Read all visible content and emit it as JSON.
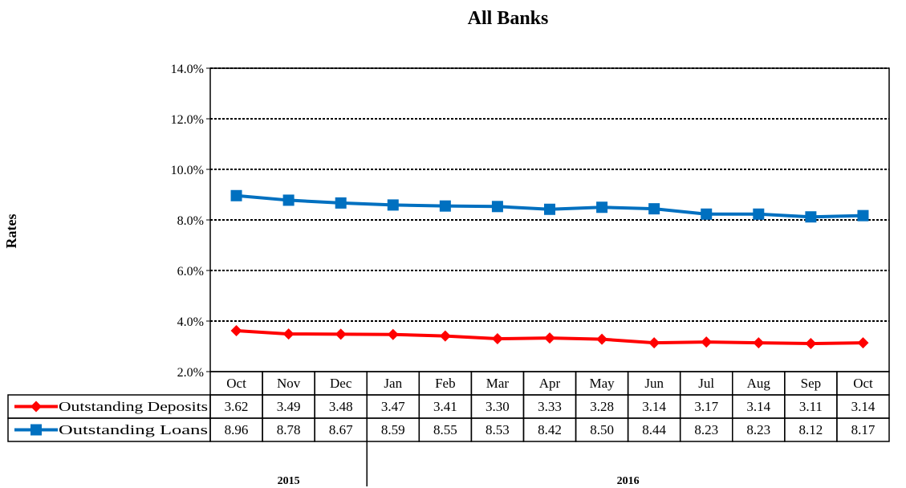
{
  "chart_data": {
    "type": "line",
    "title": "All Banks",
    "ylabel": "Rates",
    "ylim": [
      2.0,
      14.0
    ],
    "y_ticks": [
      "2.0%",
      "4.0%",
      "6.0%",
      "8.0%",
      "10.0%",
      "12.0%",
      "14.0%"
    ],
    "y_tick_values": [
      2,
      4,
      6,
      8,
      10,
      12,
      14
    ],
    "categories": [
      "Oct",
      "Nov",
      "Dec",
      "Jan",
      "Feb",
      "Mar",
      "Apr",
      "May",
      "Jun",
      "Jul",
      "Aug",
      "Sep",
      "Oct"
    ],
    "years": [
      {
        "label": "2015",
        "start": 0,
        "end": 2
      },
      {
        "label": "2016",
        "start": 3,
        "end": 12
      }
    ],
    "grid": true,
    "legend": "data-table-left",
    "series": [
      {
        "name": "Outstanding Deposits",
        "color": "#ff0000",
        "marker": "diamond",
        "values": [
          3.62,
          3.49,
          3.48,
          3.47,
          3.41,
          3.3,
          3.33,
          3.28,
          3.14,
          3.17,
          3.14,
          3.11,
          3.14
        ],
        "labels": [
          "3.62",
          "3.49",
          "3.48",
          "3.47",
          "3.41",
          "3.30",
          "3.33",
          "3.28",
          "3.14",
          "3.17",
          "3.14",
          "3.11",
          "3.14"
        ]
      },
      {
        "name": "Outstanding Loans",
        "color": "#0070c0",
        "marker": "square",
        "values": [
          8.96,
          8.78,
          8.67,
          8.59,
          8.55,
          8.53,
          8.42,
          8.5,
          8.44,
          8.23,
          8.23,
          8.12,
          8.17
        ],
        "labels": [
          "8.96",
          "8.78",
          "8.67",
          "8.59",
          "8.55",
          "8.53",
          "8.42",
          "8.50",
          "8.44",
          "8.23",
          "8.23",
          "8.12",
          "8.17"
        ]
      }
    ]
  }
}
